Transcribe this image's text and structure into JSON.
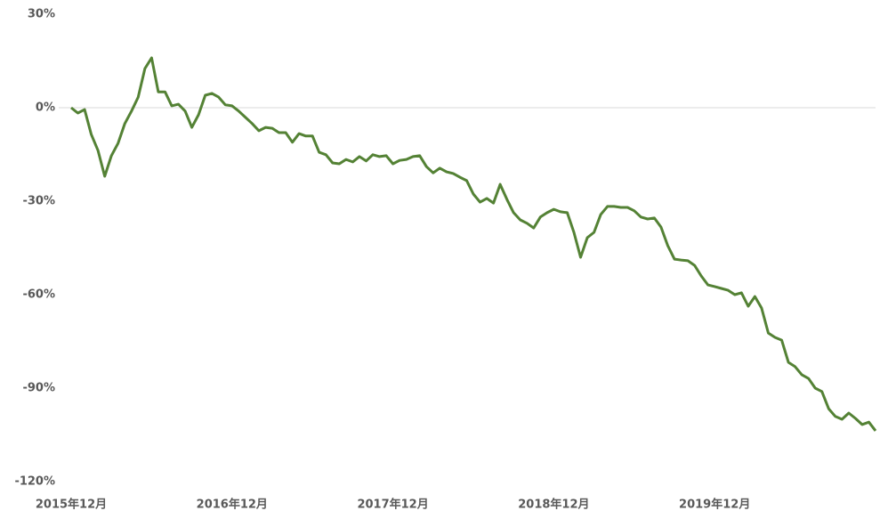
{
  "chart_data": {
    "type": "line",
    "categories": [
      "2015年12月",
      null,
      null,
      null,
      null,
      null,
      null,
      null,
      null,
      null,
      null,
      null,
      null,
      null,
      null,
      null,
      null,
      null,
      null,
      null,
      null,
      null,
      null,
      null,
      "2016年12月",
      null,
      null,
      null,
      null,
      null,
      null,
      null,
      null,
      null,
      null,
      null,
      null,
      null,
      null,
      null,
      null,
      null,
      null,
      null,
      null,
      null,
      null,
      null,
      "2017年12月",
      null,
      null,
      null,
      null,
      null,
      null,
      null,
      null,
      null,
      null,
      null,
      null,
      null,
      null,
      null,
      null,
      null,
      null,
      null,
      null,
      null,
      null,
      null,
      "2018年12月",
      null,
      null,
      null,
      null,
      null,
      null,
      null,
      null,
      null,
      null,
      null,
      null,
      null,
      null,
      null,
      null,
      null,
      null,
      null,
      null,
      null,
      null,
      null,
      "2019年12月",
      null,
      null,
      null,
      null,
      null,
      null,
      null,
      null,
      null,
      null,
      null,
      null,
      null,
      null,
      null,
      null,
      null,
      null,
      null,
      null,
      null,
      null,
      null,
      null
    ],
    "series": [
      {
        "color": "#548235",
        "values": [
          0,
          -1.7,
          -0.6,
          -8.6,
          -13.7,
          -22,
          -15.4,
          -11.4,
          -5.1,
          -1.1,
          3.4,
          12.6,
          16,
          5.1,
          5.1,
          0.6,
          1.1,
          -1.1,
          -6.3,
          -2.3,
          4,
          4.6,
          3.4,
          0.9,
          0.6,
          -1.1,
          -3.1,
          -5.1,
          -7.4,
          -6.3,
          -6.6,
          -8,
          -8,
          -11.1,
          -8.3,
          -9.1,
          -9.1,
          -14.3,
          -15.1,
          -17.7,
          -18,
          -16.6,
          -17.4,
          -15.7,
          -17.1,
          -15.1,
          -15.7,
          -15.4,
          -18,
          -16.9,
          -16.6,
          -15.7,
          -15.4,
          -18.9,
          -20.9,
          -19.4,
          -20.6,
          -21.1,
          -22.3,
          -23.4,
          -27.7,
          -30.3,
          -29.1,
          -30.6,
          -24.6,
          -29.4,
          -33.7,
          -36,
          -37.1,
          -38.6,
          -35.1,
          -33.7,
          -32.6,
          -33.4,
          -33.7,
          -40,
          -48,
          -41.7,
          -40,
          -34.3,
          -31.7,
          -31.7,
          -32,
          -32,
          -33.1,
          -35.1,
          -35.7,
          -35.4,
          -38.3,
          -44.3,
          -48.6,
          -48.9,
          -49.1,
          -50.6,
          -54,
          -56.9,
          -57.4,
          -58,
          -58.6,
          -60,
          -59.4,
          -63.7,
          -60.6,
          -64.3,
          -72.3,
          -73.7,
          -74.6,
          -81.7,
          -83.1,
          -85.7,
          -86.9,
          -90,
          -91.1,
          -96.6,
          -99.1,
          -100,
          -98,
          -99.7,
          -101.7,
          -100.9,
          -103.7
        ]
      }
    ],
    "ylim": [
      -120,
      30
    ],
    "yticks": [
      {
        "value": 30,
        "label": "30%"
      },
      {
        "value": 0,
        "label": "0%"
      },
      {
        "value": -30,
        "label": "-30%"
      },
      {
        "value": -60,
        "label": "-60%"
      },
      {
        "value": -90,
        "label": "-90%"
      },
      {
        "value": -120,
        "label": "-120%"
      }
    ]
  }
}
